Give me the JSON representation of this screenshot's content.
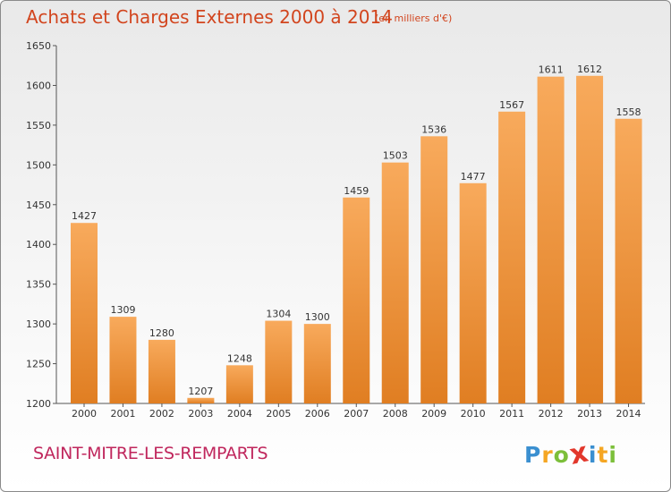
{
  "title": "Achats et Charges Externes 2000 à 2014",
  "subtitle": "(en milliers d'€)",
  "location": "SAINT-MITRE-LES-REMPARTS",
  "logo": {
    "letters": [
      "P",
      "r",
      "o",
      "x",
      "i",
      "t",
      "i"
    ],
    "colors": [
      "#3a8fd0",
      "#f5a623",
      "#7cbf3a",
      "#e2372b",
      "#3a8fd0",
      "#f5a623",
      "#7cbf3a"
    ]
  },
  "colors": {
    "bar_light": "#f8aa5c",
    "bar_dark": "#e07e22",
    "title": "#d2451e",
    "location": "#c0275d"
  },
  "chart_data": {
    "type": "bar",
    "title": "Achats et Charges Externes 2000 à 2014",
    "subtitle": "(en milliers d'€)",
    "xlabel": "",
    "ylabel": "",
    "categories": [
      "2000",
      "2001",
      "2002",
      "2003",
      "2004",
      "2005",
      "2006",
      "2007",
      "2008",
      "2009",
      "2010",
      "2011",
      "2012",
      "2013",
      "2014"
    ],
    "values": [
      1427,
      1309,
      1280,
      1207,
      1248,
      1304,
      1300,
      1459,
      1503,
      1536,
      1477,
      1567,
      1611,
      1612,
      1558
    ],
    "ylim": [
      1200,
      1650
    ],
    "yticks": [
      1200,
      1250,
      1300,
      1350,
      1400,
      1450,
      1500,
      1550,
      1600,
      1650
    ],
    "grid": false,
    "legend": "none",
    "data_labels": true
  }
}
